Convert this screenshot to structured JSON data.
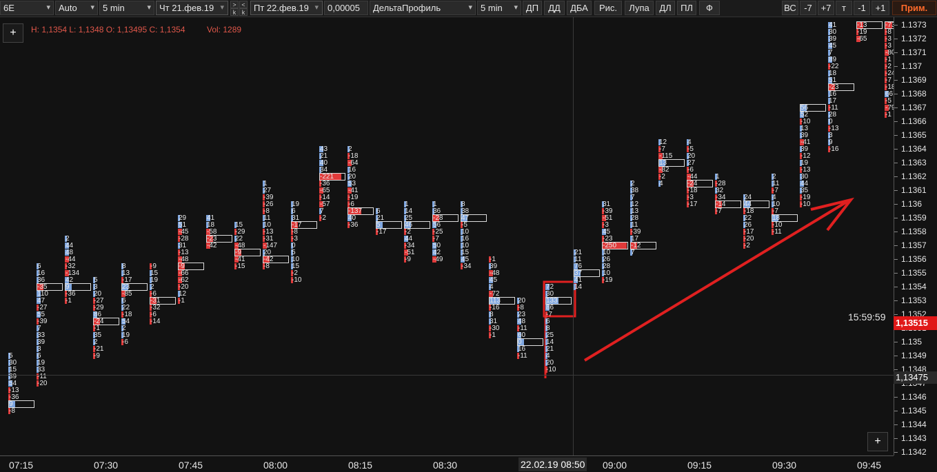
{
  "toolbar": {
    "symbol": "6E",
    "scale": "Auto",
    "timeframe": "5 min",
    "date_from": "Чт 21.фев.19",
    "date_to": "Пт 22.фев.19",
    "tick_size": "0,00005",
    "indicator": "ДельтаПрофиль",
    "indicator_tf": "5 min",
    "nav_up": ">",
    "nav_left": "<",
    "nav_k1": "k",
    "nav_k2": "k",
    "buttons": [
      "ДП",
      "ДД",
      "ДБА",
      "Рис.",
      "Лупа",
      "ДЛ",
      "ПЛ",
      "Ф"
    ],
    "right_buttons": [
      "ВС",
      "-7",
      "+7",
      "т",
      "-1",
      "+1"
    ],
    "apply_label": "Прим."
  },
  "info": {
    "ohlc": "H: 1,1354 L: 1,1348 O: 1,13495 C: 1,1354",
    "volume": "Vol: 1289"
  },
  "plus_label": "+",
  "status": {
    "clock": "15:59:59",
    "last_price": "1,13515",
    "crosshair_price": "1,13475",
    "crosshair_time": "22.02.19 08:50"
  },
  "colors": {
    "background": "#121212",
    "buy": "#7ea6e0",
    "sell": "#e03a3a",
    "annotation": "#e02020"
  },
  "chart_data": {
    "type": "table",
    "title": "6E Delta Profile",
    "y_ticks": [
      "1.1373",
      "1.1372",
      "1.1371",
      "1.137",
      "1.1369",
      "1.1368",
      "1.1367",
      "1.1366",
      "1.1365",
      "1.1364",
      "1.1363",
      "1.1362",
      "1.1361",
      "1.136",
      "1.1359",
      "1.1358",
      "1.1357",
      "1.1356",
      "1.1355",
      "1.1354",
      "1.1353",
      "1.1352",
      "1.1351",
      "1.135",
      "1.1349",
      "1.1348",
      "1.1347",
      "1.1346",
      "1.1345",
      "1.1344",
      "1.1343",
      "1.1342"
    ],
    "x_ticks": [
      "07:15",
      "07:30",
      "07:45",
      "08:00",
      "08:15",
      "08:30",
      "09:00",
      "09:15",
      "09:30",
      "09:45"
    ],
    "columns": [
      {
        "top": 1.1349,
        "values": [
          5,
          30,
          15,
          39,
          54,
          -13,
          -36,
          9,
          -8
        ],
        "poc": 1.13455
      },
      {
        "top": 1.13555,
        "values": [
          6,
          16,
          36,
          -35,
          110,
          47,
          -27,
          55,
          -39,
          7,
          33,
          39,
          3,
          6,
          19,
          33,
          -11,
          -20
        ],
        "poc": 1.1354
      },
      {
        "top": 1.13575,
        "values": [
          2,
          44,
          48,
          -44,
          -32,
          -134,
          42,
          9,
          -36,
          -1
        ],
        "poc": 1.1354
      },
      {
        "top": 1.13545,
        "values": [
          5,
          3,
          20,
          -27,
          -29,
          86,
          -24,
          -1,
          35,
          2,
          -21,
          -9
        ],
        "poc": 1.13515
      },
      {
        "top": 1.13555,
        "values": [
          8,
          13,
          -17,
          23,
          -85,
          6,
          22,
          -18,
          54,
          2,
          19,
          -6
        ],
        "poc": 1.1354
      },
      {
        "top": 1.13555,
        "values": [
          -9,
          15,
          19,
          2,
          -6,
          -31,
          -32,
          -6,
          -14
        ],
        "poc": 1.1353
      },
      {
        "top": 1.1359,
        "values": [
          29,
          51,
          -45,
          -28,
          31,
          -13,
          -48,
          -9,
          -66,
          -62,
          -20,
          12,
          -1
        ],
        "poc": 1.13555
      },
      {
        "top": 1.1359,
        "values": [
          41,
          18,
          -58,
          -23,
          -42
        ],
        "poc": 1.13575
      },
      {
        "top": 1.13585,
        "values": [
          15,
          -29,
          22,
          -48,
          -9,
          -41,
          -15
        ],
        "poc": 1.13565
      },
      {
        "top": 1.13615,
        "values": [
          1,
          27,
          -39,
          -26,
          -8,
          11,
          10,
          -13,
          -31,
          -147,
          20,
          -42,
          -8
        ],
        "poc": 1.1356
      },
      {
        "top": 1.136,
        "values": [
          19,
          6,
          31,
          -17,
          -8,
          -3,
          0,
          5,
          10,
          15,
          -2,
          -10
        ],
        "poc": 1.13585
      },
      {
        "top": 1.1364,
        "values": [
          43,
          21,
          40,
          34,
          -221,
          -36,
          -65,
          -14,
          -57,
          7,
          -2
        ],
        "poc": 1.1362
      },
      {
        "top": 1.1364,
        "values": [
          2,
          -18,
          -64,
          16,
          20,
          53,
          -41,
          -19,
          -6,
          -137,
          40,
          -36
        ],
        "poc": 1.13595
      },
      {
        "top": 1.13595,
        "values": [
          6,
          21,
          5,
          -17
        ],
        "poc": 1.13585
      },
      {
        "top": 1.136,
        "values": [
          1,
          14,
          25,
          46,
          -2,
          44,
          -34,
          -51,
          -9
        ],
        "poc": 1.13585
      },
      {
        "top": 1.136,
        "values": [
          1,
          36,
          -28,
          56,
          -25,
          -7,
          50,
          42,
          -49
        ],
        "poc": 1.1359
      },
      {
        "top": 1.136,
        "values": [
          8,
          38,
          47,
          -5,
          10,
          16,
          10,
          15,
          45,
          -34
        ],
        "poc": 1.1359
      },
      {
        "top": 1.1356,
        "values": [
          -1,
          39,
          -48,
          45,
          4,
          -72,
          113,
          -16,
          8,
          31,
          -30,
          -1
        ],
        "poc": 1.1353
      },
      {
        "top": 1.1353,
        "values": [
          20,
          -8,
          23,
          48,
          -11,
          60,
          0,
          16,
          -11
        ],
        "poc": 1.135
      },
      {
        "top": 1.1354,
        "values": [
          72,
          30,
          133,
          86,
          -7,
          6,
          8,
          25,
          14,
          21,
          4,
          20,
          -10
        ],
        "poc": 1.1353
      },
      {
        "top": 1.13565,
        "values": [
          21,
          11,
          76,
          37,
          41,
          14
        ],
        "poc": 1.1355
      },
      {
        "top": 1.136,
        "values": [
          31,
          -39,
          -51,
          -3,
          45,
          -23,
          -250,
          10,
          26,
          28,
          10,
          -19
        ],
        "poc": 1.1357
      },
      {
        "top": 1.13615,
        "values": [
          2,
          38,
          7,
          12,
          13,
          28,
          11,
          -39,
          17,
          -12,
          7
        ],
        "poc": 1.1357
      },
      {
        "top": 1.13645,
        "values": [
          12,
          -7,
          -115,
          13,
          -82,
          -2,
          4
        ],
        "poc": 1.1363
      },
      {
        "top": 1.13645,
        "values": [
          4,
          -5,
          20,
          27,
          -6,
          -44,
          -24,
          -18,
          -3,
          -17
        ],
        "poc": 1.13615
      },
      {
        "top": 1.1362,
        "values": [
          1,
          -28,
          32,
          -34,
          -14,
          -7
        ],
        "poc": 1.136
      },
      {
        "top": 1.13605,
        "values": [
          24,
          44,
          -18,
          22,
          26,
          -17,
          -20,
          -2
        ],
        "poc": 1.136
      },
      {
        "top": 1.1362,
        "values": [
          2,
          11,
          -7,
          4,
          10,
          -7,
          18,
          -10,
          -11
        ],
        "poc": 1.1359
      },
      {
        "top": 1.1367,
        "values": [
          56,
          52,
          -10,
          13,
          39,
          -41,
          39,
          -12,
          19,
          -13,
          30,
          44,
          35,
          -19,
          -10
        ],
        "poc": 1.1367
      },
      {
        "top": 1.1373,
        "values": [
          41,
          30,
          39,
          45,
          7,
          89,
          -22,
          18,
          51,
          -23,
          16,
          17,
          -11,
          28,
          0,
          -13,
          3,
          9,
          -16
        ],
        "poc": 1.13685
      },
      {
        "top": 1.1373,
        "values": [
          -13,
          -19,
          -65
        ],
        "poc": 1.1373
      },
      {
        "top": 1.1373,
        "values": [
          -73,
          -8,
          -3,
          -3,
          -80,
          -1,
          -2,
          -24,
          -7,
          -18,
          66,
          -5,
          -79,
          -1
        ],
        "poc": 1.1373
      }
    ]
  }
}
